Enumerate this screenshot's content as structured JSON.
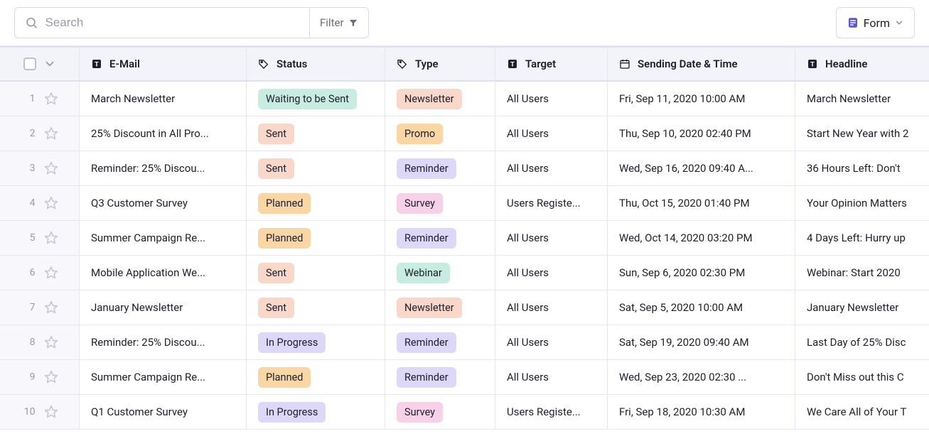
{
  "toolbar": {
    "search_placeholder": "Search",
    "filter_label": "Filter",
    "form_label": "Form"
  },
  "columns": {
    "email": "E-Mail",
    "status": "Status",
    "type": "Type",
    "target": "Target",
    "date": "Sending Date & Time",
    "headline": "Headline"
  },
  "status_colors": {
    "Waiting to be Sent": "#c7ece0",
    "Sent": "#f9d7c9",
    "Planned": "#fad6a5",
    "In Progress": "#ddd7f8"
  },
  "type_colors": {
    "Newsletter": "#f9d7c9",
    "Promo": "#fad6a5",
    "Reminder": "#ddd7f8",
    "Survey": "#f6d1e8",
    "Webinar": "#c7ece0"
  },
  "rows": [
    {
      "n": "1",
      "email": "March Newsletter",
      "status": "Waiting to be Sent",
      "type": "Newsletter",
      "target": "All Users",
      "date": "Fri, Sep 11, 2020 10:00 AM",
      "headline": "March Newsletter"
    },
    {
      "n": "2",
      "email": "25% Discount in All Pro...",
      "status": "Sent",
      "type": "Promo",
      "target": "All Users",
      "date": "Thu, Sep 10, 2020 02:40 PM",
      "headline": "Start New Year with 2"
    },
    {
      "n": "3",
      "email": "Reminder: 25% Discou...",
      "status": "Sent",
      "type": "Reminder",
      "target": "All Users",
      "date": "Wed, Sep 16, 2020 09:40 A...",
      "headline": "36 Hours Left: Don't "
    },
    {
      "n": "4",
      "email": "Q3 Customer Survey",
      "status": "Planned",
      "type": "Survey",
      "target": "Users Registe...",
      "date": "Thu, Oct 15, 2020 01:40 PM",
      "headline": "Your Opinion Matters"
    },
    {
      "n": "5",
      "email": "Summer Campaign Re...",
      "status": "Planned",
      "type": "Reminder",
      "target": "All Users",
      "date": "Wed, Oct 14, 2020 03:20 PM",
      "headline": "4 Days Left: Hurry up"
    },
    {
      "n": "6",
      "email": "Mobile Application We...",
      "status": "Sent",
      "type": "Webinar",
      "target": "All Users",
      "date": "Sun, Sep 6, 2020 02:30 PM",
      "headline": "Webinar: Start 2020 "
    },
    {
      "n": "7",
      "email": "January Newsletter",
      "status": "Sent",
      "type": "Newsletter",
      "target": "All Users",
      "date": "Sat, Sep 5, 2020 10:00 AM",
      "headline": "January Newsletter"
    },
    {
      "n": "8",
      "email": "Reminder: 25% Discou...",
      "status": "In Progress",
      "type": "Reminder",
      "target": "All Users",
      "date": "Sat, Sep 19, 2020 09:40 AM",
      "headline": "Last Day of 25% Disc"
    },
    {
      "n": "9",
      "email": "Summer Campaign Re...",
      "status": "Planned",
      "type": "Reminder",
      "target": "All Users",
      "date": "Wed, Sep 23, 2020 02:30 ...",
      "headline": "Don't Miss out this C"
    },
    {
      "n": "10",
      "email": "Q1 Customer Survey",
      "status": "In Progress",
      "type": "Survey",
      "target": "Users Registe...",
      "date": "Fri, Sep 18, 2020 10:30 AM",
      "headline": "We Care All of Your T"
    }
  ]
}
